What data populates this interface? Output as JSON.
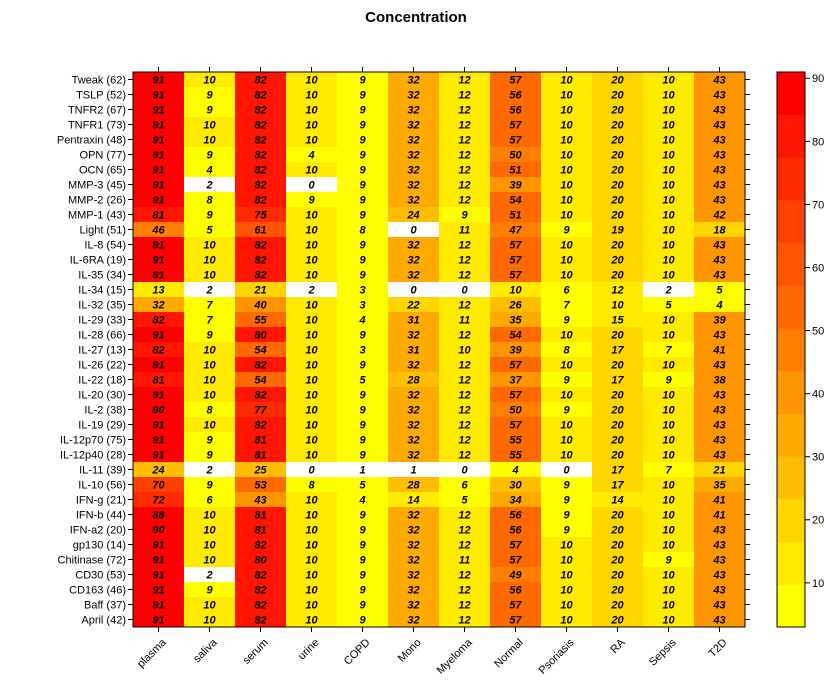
{
  "chart_data": {
    "type": "heatmap",
    "title": "Concentration",
    "rows": [
      "Tweak (62)",
      "TSLP (52)",
      "TNFR2 (67)",
      "TNFR1 (73)",
      "Pentraxin (48)",
      "OPN (77)",
      "OCN (65)",
      "MMP-3 (45)",
      "MMP-2 (26)",
      "MMP-1 (43)",
      "Light (51)",
      "IL-8 (54)",
      "IL-6RA (19)",
      "IL-35 (34)",
      "IL-34 (15)",
      "IL-32 (35)",
      "IL-29 (33)",
      "IL-28 (66)",
      "IL-27 (13)",
      "IL-26 (22)",
      "IL-22 (18)",
      "IL-20 (30)",
      "IL-2 (38)",
      "IL-19 (29)",
      "IL-12p70 (75)",
      "IL-12p40 (28)",
      "IL-11 (39)",
      "IL-10 (56)",
      "IFN-g (21)",
      "IFN-b (44)",
      "IFN-a2 (20)",
      "gp130 (14)",
      "Chitinase (72)",
      "CD30 (53)",
      "CD163 (46)",
      "Baff (37)",
      "April (42)"
    ],
    "columns": [
      "plasma",
      "saliva",
      "serum",
      "urine",
      "COPD",
      "Mono",
      "Myeloma",
      "Normal",
      "Psoriasis",
      "RA",
      "Sepsis",
      "T2D"
    ],
    "values": [
      [
        91,
        10,
        82,
        10,
        9,
        32,
        12,
        57,
        10,
        20,
        10,
        43
      ],
      [
        91,
        9,
        82,
        10,
        9,
        32,
        12,
        56,
        10,
        20,
        10,
        43
      ],
      [
        91,
        9,
        82,
        10,
        9,
        32,
        12,
        56,
        10,
        20,
        10,
        43
      ],
      [
        91,
        10,
        82,
        10,
        9,
        32,
        12,
        57,
        10,
        20,
        10,
        43
      ],
      [
        91,
        10,
        82,
        10,
        9,
        32,
        12,
        57,
        10,
        20,
        10,
        43
      ],
      [
        91,
        9,
        82,
        4,
        9,
        32,
        12,
        50,
        10,
        20,
        10,
        43
      ],
      [
        91,
        4,
        82,
        10,
        9,
        32,
        12,
        51,
        10,
        20,
        10,
        43
      ],
      [
        91,
        2,
        82,
        0,
        9,
        32,
        12,
        39,
        10,
        20,
        10,
        43
      ],
      [
        91,
        8,
        82,
        9,
        9,
        32,
        12,
        54,
        10,
        20,
        10,
        43
      ],
      [
        81,
        9,
        75,
        10,
        9,
        24,
        9,
        51,
        10,
        20,
        10,
        42
      ],
      [
        46,
        5,
        61,
        10,
        8,
        0,
        11,
        47,
        9,
        19,
        10,
        18
      ],
      [
        91,
        10,
        82,
        10,
        9,
        32,
        12,
        57,
        10,
        20,
        10,
        43
      ],
      [
        91,
        10,
        82,
        10,
        9,
        32,
        12,
        57,
        10,
        20,
        10,
        43
      ],
      [
        91,
        10,
        82,
        10,
        9,
        32,
        12,
        57,
        10,
        20,
        10,
        43
      ],
      [
        13,
        2,
        21,
        2,
        3,
        0,
        0,
        10,
        6,
        12,
        2,
        5
      ],
      [
        32,
        7,
        40,
        10,
        3,
        22,
        12,
        26,
        7,
        10,
        5,
        4
      ],
      [
        82,
        7,
        55,
        10,
        4,
        31,
        11,
        35,
        9,
        15,
        10,
        39
      ],
      [
        91,
        9,
        80,
        10,
        9,
        32,
        12,
        54,
        10,
        20,
        10,
        43
      ],
      [
        82,
        10,
        54,
        10,
        3,
        31,
        10,
        39,
        8,
        17,
        7,
        41
      ],
      [
        91,
        10,
        82,
        10,
        9,
        32,
        12,
        57,
        10,
        20,
        10,
        43
      ],
      [
        81,
        10,
        54,
        10,
        5,
        28,
        12,
        37,
        9,
        17,
        9,
        38
      ],
      [
        91,
        10,
        82,
        10,
        9,
        32,
        12,
        57,
        10,
        20,
        10,
        43
      ],
      [
        90,
        8,
        77,
        10,
        9,
        32,
        12,
        50,
        9,
        20,
        10,
        43
      ],
      [
        91,
        10,
        82,
        10,
        9,
        32,
        12,
        57,
        10,
        20,
        10,
        43
      ],
      [
        91,
        9,
        81,
        10,
        9,
        32,
        12,
        55,
        10,
        20,
        10,
        43
      ],
      [
        91,
        9,
        81,
        10,
        9,
        32,
        12,
        55,
        10,
        20,
        10,
        43
      ],
      [
        24,
        2,
        25,
        0,
        1,
        1,
        0,
        4,
        0,
        17,
        7,
        21
      ],
      [
        70,
        9,
        53,
        8,
        5,
        28,
        6,
        30,
        9,
        17,
        10,
        35
      ],
      [
        72,
        6,
        43,
        10,
        4,
        14,
        5,
        34,
        9,
        14,
        10,
        41
      ],
      [
        88,
        10,
        81,
        10,
        9,
        32,
        12,
        56,
        9,
        20,
        10,
        41
      ],
      [
        90,
        10,
        81,
        10,
        9,
        32,
        12,
        56,
        9,
        20,
        10,
        43
      ],
      [
        91,
        10,
        82,
        10,
        9,
        32,
        12,
        57,
        10,
        20,
        10,
        43
      ],
      [
        91,
        10,
        80,
        10,
        9,
        32,
        11,
        57,
        10,
        20,
        9,
        43
      ],
      [
        91,
        2,
        82,
        10,
        9,
        32,
        12,
        49,
        10,
        20,
        10,
        43
      ],
      [
        91,
        9,
        82,
        10,
        9,
        32,
        12,
        56,
        10,
        20,
        10,
        43
      ],
      [
        91,
        10,
        82,
        10,
        9,
        32,
        12,
        57,
        10,
        20,
        10,
        43
      ],
      [
        91,
        10,
        82,
        10,
        9,
        32,
        12,
        57,
        10,
        20,
        10,
        43
      ]
    ],
    "zlim": [
      3,
      91
    ],
    "zticks": [
      10,
      20,
      30,
      40,
      50,
      60,
      70,
      80,
      90
    ],
    "colors": [
      "#ffff00",
      "#ffea00",
      "#ffd500",
      "#ffbf00",
      "#ffaa00",
      "#ff9500",
      "#ff8000",
      "#ff6a00",
      "#ff5500",
      "#ff4000",
      "#ff2a00",
      "#ff1500",
      "#ff0000"
    ]
  }
}
